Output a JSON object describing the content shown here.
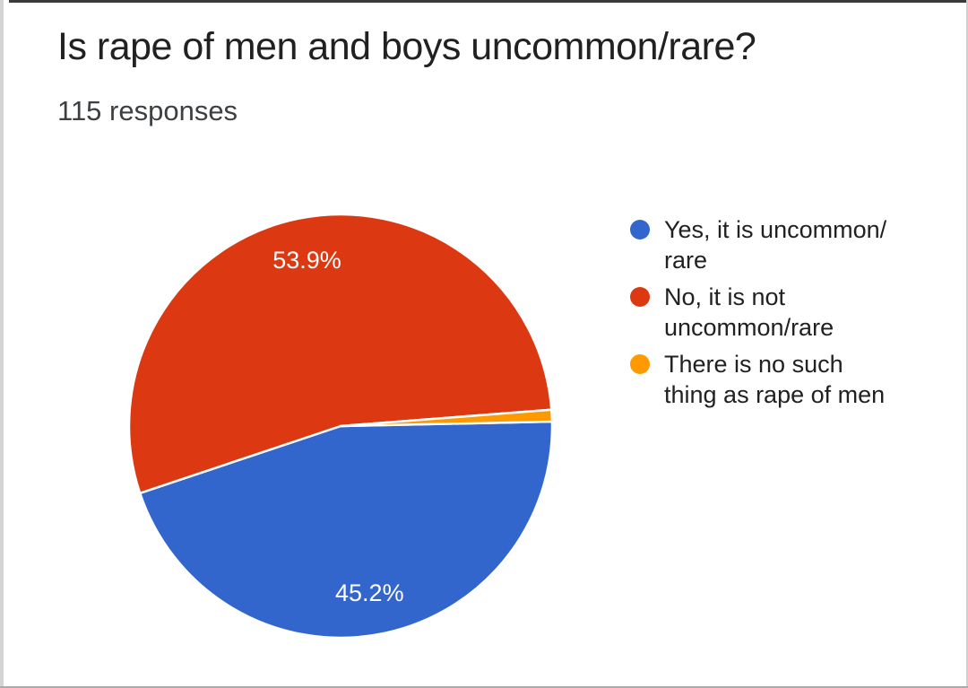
{
  "header": {
    "title": "Is rape of men and boys uncommon/rare?",
    "responses_label": "115 responses"
  },
  "chart_data": {
    "type": "pie",
    "title": "Is rape of men and boys uncommon/rare?",
    "subtitle": "115 responses",
    "legend_position": "right",
    "start_angle_deg": 88.8,
    "slice_label_color": "#fdfdfd",
    "slice_border_color": "#ffffff",
    "slices": [
      {
        "label": "Yes, it is uncommon/rare",
        "percent": 45.2,
        "value_label": "45.2%",
        "color": "#3366cc",
        "show_label": true,
        "legend_lines": [
          "Yes, it is uncommon/",
          "rare"
        ]
      },
      {
        "label": "No, it is not uncommon/rare",
        "percent": 53.9,
        "value_label": "53.9%",
        "color": "#dc3912",
        "show_label": true,
        "legend_lines": [
          "No, it is not",
          "uncommon/rare"
        ]
      },
      {
        "label": "There is no such thing as rape of men",
        "percent": 0.9,
        "value_label": "0.9%",
        "color": "#ff9900",
        "show_label": false,
        "legend_lines": [
          "There is no such",
          "thing as rape of men"
        ]
      }
    ]
  }
}
